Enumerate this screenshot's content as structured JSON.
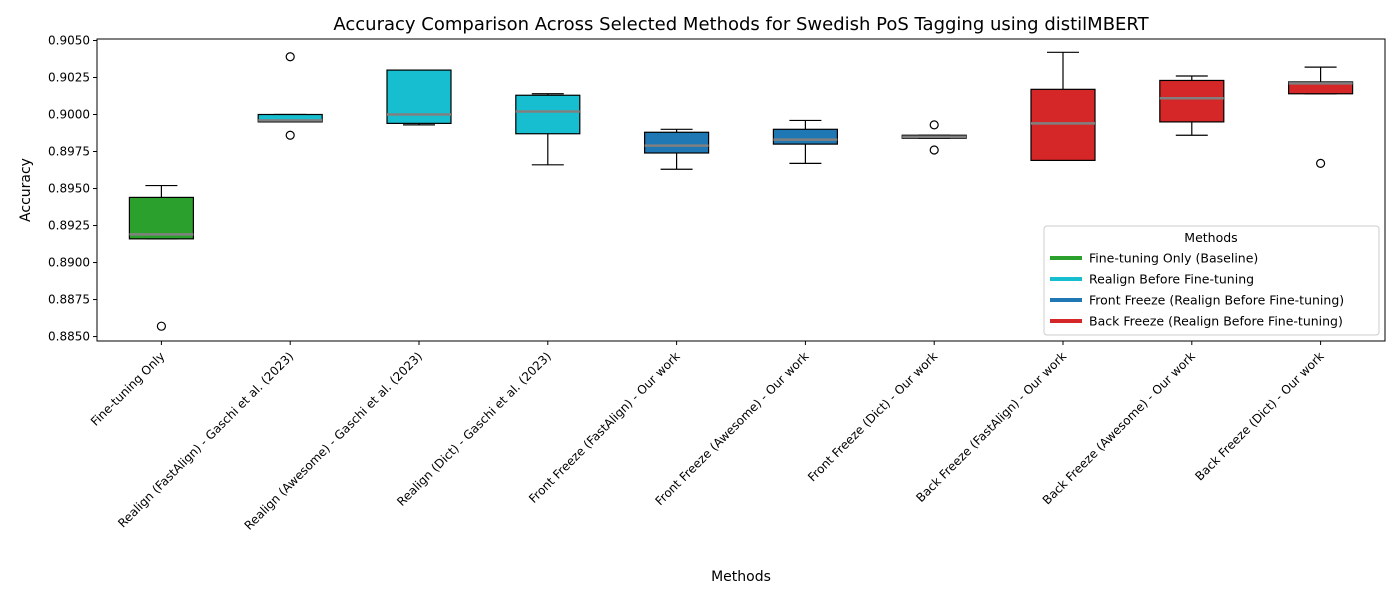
{
  "chart_data": {
    "type": "box",
    "title": "Accuracy Comparison Across Selected Methods for Swedish PoS Tagging using distilMBERT",
    "xlabel": "Methods",
    "ylabel": "Accuracy",
    "ylim": [
      0.8847,
      0.9051
    ],
    "yticks": [
      0.885,
      0.8875,
      0.89,
      0.8925,
      0.895,
      0.8975,
      0.9,
      0.9025,
      0.905
    ],
    "grid": false,
    "legend": {
      "title": "Methods",
      "placement": "lower-right",
      "entries": [
        {
          "label": "Fine-tuning Only (Baseline)",
          "color": "#2ca02c"
        },
        {
          "label": "Realign Before Fine-tuning",
          "color": "#17becf"
        },
        {
          "label": "Front Freeze (Realign Before Fine-tuning)",
          "color": "#1f77b4"
        },
        {
          "label": "Back Freeze (Realign Before Fine-tuning)",
          "color": "#d62728"
        }
      ]
    },
    "median_color": "#808080",
    "categories": [
      {
        "label": "Fine-tuning Only",
        "group": 0,
        "whisker_low": 0.8916,
        "q1": 0.8916,
        "median": 0.8919,
        "q3": 0.8944,
        "whisker_high": 0.8952,
        "outliers": [
          0.8857
        ]
      },
      {
        "label": "Realign (FastAlign) - Gaschi et al. (2023)",
        "group": 1,
        "whisker_low": 0.8995,
        "q1": 0.8995,
        "median": 0.8996,
        "q3": 0.9,
        "whisker_high": 0.9,
        "outliers": [
          0.9039,
          0.8986
        ]
      },
      {
        "label": "Realign (Awesome) - Gaschi et al. (2023)",
        "group": 1,
        "whisker_low": 0.8993,
        "q1": 0.8994,
        "median": 0.9,
        "q3": 0.903,
        "whisker_high": 0.903,
        "outliers": []
      },
      {
        "label": "Realign (Dict) - Gaschi et al. (2023)",
        "group": 1,
        "whisker_low": 0.8966,
        "q1": 0.8987,
        "median": 0.9002,
        "q3": 0.9013,
        "whisker_high": 0.9014,
        "outliers": []
      },
      {
        "label": "Front Freeze (FastAlign) - Our work",
        "group": 2,
        "whisker_low": 0.8963,
        "q1": 0.8974,
        "median": 0.8979,
        "q3": 0.8988,
        "whisker_high": 0.899,
        "outliers": []
      },
      {
        "label": "Front Freeze (Awesome) - Our work",
        "group": 2,
        "whisker_low": 0.8967,
        "q1": 0.898,
        "median": 0.8983,
        "q3": 0.899,
        "whisker_high": 0.8996,
        "outliers": []
      },
      {
        "label": "Front Freeze (Dict) - Our work",
        "group": 2,
        "whisker_low": 0.8984,
        "q1": 0.8984,
        "median": 0.8985,
        "q3": 0.8986,
        "whisker_high": 0.8986,
        "outliers": [
          0.8993,
          0.8976
        ]
      },
      {
        "label": "Back Freeze (FastAlign) - Our work",
        "group": 3,
        "whisker_low": 0.8969,
        "q1": 0.8969,
        "median": 0.8994,
        "q3": 0.9017,
        "whisker_high": 0.9042,
        "outliers": []
      },
      {
        "label": "Back Freeze (Awesome) - Our work",
        "group": 3,
        "whisker_low": 0.8986,
        "q1": 0.8995,
        "median": 0.9011,
        "q3": 0.9023,
        "whisker_high": 0.9026,
        "outliers": []
      },
      {
        "label": "Back Freeze (Dict) - Our work",
        "group": 3,
        "whisker_low": 0.9014,
        "q1": 0.9014,
        "median": 0.9021,
        "q3": 0.9022,
        "whisker_high": 0.9032,
        "outliers": [
          0.8967
        ]
      }
    ]
  }
}
